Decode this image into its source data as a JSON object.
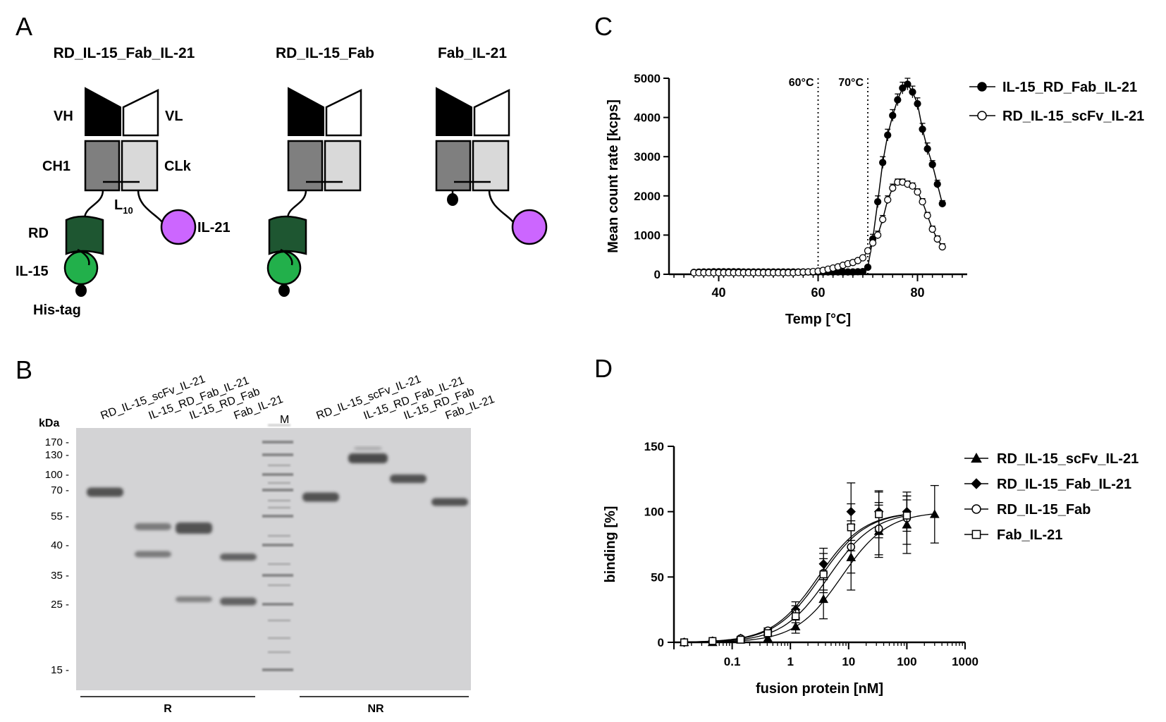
{
  "panel_labels": {
    "a": "A",
    "b": "B",
    "c": "C",
    "d": "D"
  },
  "panel_a": {
    "constructs": [
      {
        "title": "RD_IL-15_Fab_IL-21"
      },
      {
        "title": "RD_IL-15_Fab"
      },
      {
        "title": "Fab_IL-21"
      }
    ],
    "labels": {
      "vh": "VH",
      "vl": "VL",
      "ch1": "CH1",
      "clk": "CLk",
      "linker_main": "L",
      "linker_sub": "10",
      "rd": "RD",
      "il21": "IL-21",
      "il15": "IL-15",
      "his": "His-tag"
    },
    "colors": {
      "vh": "#000000",
      "ch1": "#7f7f7f",
      "clk": "#d9d9d9",
      "rd": "#1e5631",
      "il15": "#22b04b",
      "il21": "#cc66ff"
    }
  },
  "panel_b": {
    "kda_label": "kDa",
    "markers": [
      "170",
      "130",
      "100",
      "70",
      "55",
      "40",
      "35",
      "25",
      "15"
    ],
    "lanes": [
      "RD_IL-15_scFv_IL-21",
      "IL-15_RD_Fab_IL-21",
      "IL-15_RD_Fab",
      "Fab_IL-21",
      "M",
      "RD_IL-15_scFv_IL-21",
      "IL-15_RD_Fab_IL-21",
      "IL-15_RD_Fab",
      "Fab_IL-21"
    ],
    "group_r": "R",
    "group_nr": "NR"
  },
  "panel_c": {
    "chart_data": {
      "type": "line",
      "xlabel": "Temp [°C]",
      "ylabel": "Mean count rate [kcps]",
      "xlim": [
        30,
        90
      ],
      "ylim": [
        0,
        5000
      ],
      "xticks": [
        40,
        60,
        80
      ],
      "yticks": [
        0,
        1000,
        2000,
        3000,
        4000,
        5000
      ],
      "vlines": [
        {
          "x": 60,
          "label": "60°C"
        },
        {
          "x": 70,
          "label": "70°C"
        }
      ],
      "legend_position": "top-right",
      "series": [
        {
          "name": "IL-15_RD_Fab_IL-21",
          "marker": "filled-circle",
          "x": [
            35,
            36,
            37,
            38,
            39,
            40,
            41,
            42,
            43,
            44,
            45,
            46,
            47,
            48,
            49,
            50,
            51,
            52,
            53,
            54,
            55,
            56,
            57,
            58,
            59,
            60,
            61,
            62,
            63,
            64,
            65,
            66,
            67,
            68,
            69,
            70,
            71,
            72,
            73,
            74,
            75,
            76,
            77,
            78,
            79,
            80,
            81,
            82,
            83,
            84,
            85
          ],
          "y": [
            50,
            55,
            60,
            60,
            65,
            65,
            65,
            65,
            65,
            65,
            60,
            60,
            60,
            60,
            60,
            60,
            60,
            60,
            60,
            60,
            60,
            60,
            60,
            60,
            60,
            60,
            60,
            60,
            60,
            60,
            60,
            60,
            60,
            65,
            70,
            180,
            900,
            1850,
            2850,
            3550,
            4050,
            4450,
            4750,
            4850,
            4650,
            4350,
            3700,
            3200,
            2800,
            2300,
            1800
          ],
          "err": [
            0,
            0,
            0,
            0,
            0,
            0,
            0,
            0,
            0,
            0,
            0,
            0,
            0,
            0,
            0,
            0,
            0,
            0,
            0,
            0,
            0,
            0,
            0,
            0,
            0,
            0,
            0,
            0,
            0,
            0,
            0,
            0,
            0,
            0,
            0,
            0,
            120,
            150,
            150,
            150,
            150,
            150,
            150,
            150,
            150,
            150,
            150,
            150,
            100,
            100,
            80
          ]
        },
        {
          "name": "RD_IL-15_scFv_IL-21",
          "marker": "open-circle",
          "x": [
            35,
            36,
            37,
            38,
            39,
            40,
            41,
            42,
            43,
            44,
            45,
            46,
            47,
            48,
            49,
            50,
            51,
            52,
            53,
            54,
            55,
            56,
            57,
            58,
            59,
            60,
            61,
            62,
            63,
            64,
            65,
            66,
            67,
            68,
            69,
            70,
            71,
            72,
            73,
            74,
            75,
            76,
            77,
            78,
            79,
            80,
            81,
            82,
            83,
            84,
            85
          ],
          "y": [
            40,
            40,
            40,
            40,
            40,
            40,
            40,
            40,
            40,
            40,
            40,
            40,
            40,
            40,
            40,
            40,
            40,
            40,
            40,
            40,
            40,
            50,
            55,
            60,
            70,
            80,
            100,
            130,
            160,
            190,
            230,
            270,
            300,
            350,
            420,
            600,
            800,
            1000,
            1400,
            1900,
            2200,
            2350,
            2350,
            2300,
            2250,
            2100,
            1850,
            1500,
            1150,
            900,
            700
          ],
          "err": [
            0,
            0,
            0,
            0,
            0,
            0,
            0,
            0,
            0,
            0,
            0,
            0,
            0,
            0,
            0,
            0,
            0,
            0,
            0,
            0,
            0,
            0,
            0,
            0,
            0,
            0,
            0,
            0,
            0,
            0,
            0,
            0,
            0,
            0,
            0,
            50,
            80,
            100,
            100,
            100,
            100,
            80,
            80,
            80,
            80,
            80,
            80,
            80,
            80,
            80,
            80
          ]
        }
      ]
    }
  },
  "panel_d": {
    "chart_data": {
      "type": "scatter",
      "xlabel": "fusion protein [nM]",
      "ylabel": "binding [%]",
      "x_scale": "log",
      "xlim": [
        0.01,
        1000
      ],
      "ylim": [
        0,
        150
      ],
      "xtick_labels": [
        "0.1",
        "1",
        "10",
        "100",
        "1000"
      ],
      "xtick_values": [
        0.1,
        1,
        10,
        100,
        1000
      ],
      "yticks": [
        0,
        50,
        100,
        150
      ],
      "legend_position": "right",
      "series": [
        {
          "name": "RD_IL-15_scFv_IL-21",
          "marker": "filled-triangle",
          "ec50": 7.5,
          "x": [
            0.015,
            0.046,
            0.14,
            0.41,
            1.23,
            3.7,
            11,
            33,
            100,
            300
          ],
          "y": [
            0,
            0,
            2,
            3,
            12,
            33,
            65,
            85,
            90,
            98
          ],
          "err": [
            0,
            0,
            1,
            2,
            5,
            15,
            25,
            20,
            22,
            22
          ]
        },
        {
          "name": "RD_IL-15_Fab_IL-21",
          "marker": "filled-diamond",
          "ec50": 3.0,
          "x": [
            0.015,
            0.046,
            0.14,
            0.41,
            1.23,
            3.7,
            11,
            33,
            100
          ],
          "y": [
            0,
            1,
            3,
            8,
            25,
            60,
            100,
            100,
            100
          ],
          "err": [
            0,
            0,
            1,
            2,
            6,
            12,
            22,
            15,
            12
          ]
        },
        {
          "name": "RD_IL-15_Fab",
          "marker": "open-circle",
          "ec50": 4.5,
          "x": [
            0.015,
            0.046,
            0.14,
            0.41,
            1.23,
            3.7,
            11,
            33,
            100
          ],
          "y": [
            0,
            1,
            3,
            9,
            23,
            53,
            73,
            87,
            95
          ],
          "err": [
            0,
            0,
            1,
            2,
            5,
            15,
            20,
            20,
            20
          ]
        },
        {
          "name": "Fab_IL-21",
          "marker": "open-square",
          "ec50": 3.3,
          "x": [
            0.015,
            0.046,
            0.14,
            0.41,
            1.23,
            3.7,
            11,
            33,
            100
          ],
          "y": [
            0,
            1,
            2,
            7,
            20,
            52,
            88,
            98,
            97
          ],
          "err": [
            0,
            0,
            1,
            2,
            5,
            12,
            18,
            18,
            12
          ]
        }
      ]
    }
  }
}
